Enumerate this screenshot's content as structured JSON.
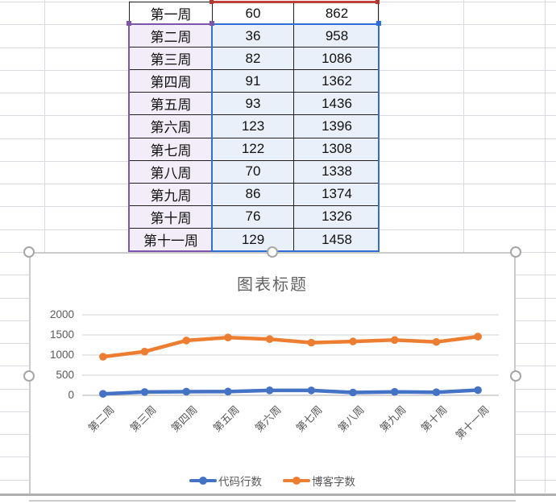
{
  "table": {
    "rows": [
      [
        "第一周",
        "60",
        "862"
      ],
      [
        "第二周",
        "36",
        "958"
      ],
      [
        "第三周",
        "82",
        "1086"
      ],
      [
        "第四周",
        "91",
        "1362"
      ],
      [
        "第五周",
        "93",
        "1436"
      ],
      [
        "第六周",
        "123",
        "1396"
      ],
      [
        "第七周",
        "122",
        "1308"
      ],
      [
        "第八周",
        "70",
        "1338"
      ],
      [
        "第九周",
        "86",
        "1374"
      ],
      [
        "第十周",
        "76",
        "1326"
      ],
      [
        "第十一周",
        "129",
        "1458"
      ]
    ]
  },
  "chart_data": {
    "type": "line",
    "title": "图表标题",
    "categories": [
      "第二周",
      "第三周",
      "第四周",
      "第五周",
      "第六周",
      "第七周",
      "第八周",
      "第九周",
      "第十周",
      "第十一周"
    ],
    "series": [
      {
        "name": "代码行数",
        "color": "#4472C4",
        "values": [
          36,
          82,
          91,
          93,
          123,
          122,
          70,
          86,
          76,
          129
        ]
      },
      {
        "name": "博客字数",
        "color": "#ED7D31",
        "values": [
          958,
          1086,
          1362,
          1436,
          1396,
          1308,
          1338,
          1374,
          1326,
          1458
        ]
      }
    ],
    "ylim": [
      0,
      2000
    ],
    "y_ticks": [
      "0",
      "500",
      "1000",
      "1500",
      "2000"
    ],
    "grid": true,
    "legend_position": "bottom",
    "x_label_rotation": -45
  },
  "colors": {
    "series_blue": "#4472C4",
    "series_orange": "#ED7D31",
    "selection_category_border": "#7B56A8",
    "selection_category_fill": "#F2EDF8",
    "selection_values_border": "#2E6FD6",
    "selection_values_fill": "#E9F0F9",
    "selection_names_border": "#BF4036",
    "chart_text": "#595959",
    "chart_gridline": "#D9D9D9"
  }
}
